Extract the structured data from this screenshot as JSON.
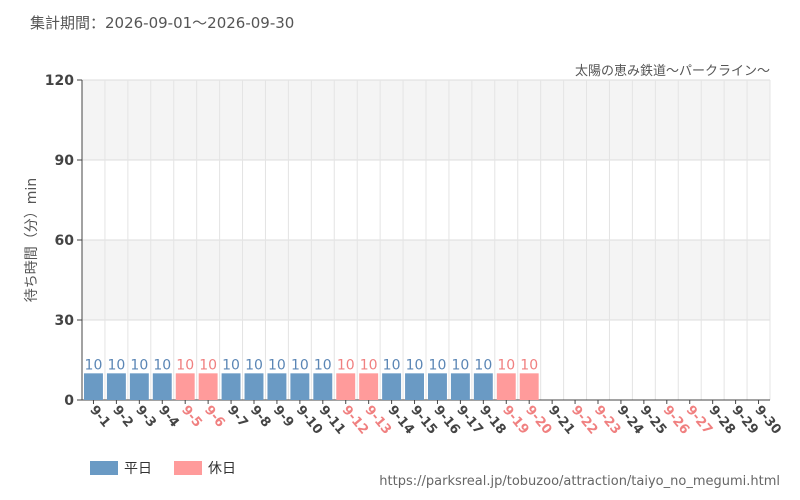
{
  "header": {
    "period_label": "集計期間：2026-09-01～2026-09-30",
    "attraction": "太陽の恵み鉄道～パークライン～"
  },
  "footer": {
    "url": "https://parksreal.jp/tobuzoo/attraction/taiyo_no_megumi.html"
  },
  "colors": {
    "weekday": "#6a9ac4",
    "holiday": "#ff9b9b",
    "weekday_text": "#5b86b5",
    "holiday_text": "#f08080"
  },
  "chart_data": {
    "type": "bar",
    "ylabel": "待ち時間（分）min",
    "ylim": [
      0,
      120
    ],
    "yticks": [
      0,
      30,
      60,
      90,
      120
    ],
    "grid": true,
    "legend_placement": "bottom-left",
    "categories": [
      "9-1",
      "9-2",
      "9-3",
      "9-4",
      "9-5",
      "9-6",
      "9-7",
      "9-8",
      "9-9",
      "9-10",
      "9-11",
      "9-12",
      "9-13",
      "9-14",
      "9-15",
      "9-16",
      "9-17",
      "9-18",
      "9-19",
      "9-20",
      "9-21",
      "9-22",
      "9-23",
      "9-24",
      "9-25",
      "9-26",
      "9-27",
      "9-28",
      "9-29",
      "9-30"
    ],
    "values": [
      10,
      10,
      10,
      10,
      10,
      10,
      10,
      10,
      10,
      10,
      10,
      10,
      10,
      10,
      10,
      10,
      10,
      10,
      10,
      10,
      null,
      null,
      null,
      null,
      null,
      null,
      null,
      null,
      null,
      null
    ],
    "day_types": [
      "weekday",
      "weekday",
      "weekday",
      "weekday",
      "holiday",
      "holiday",
      "weekday",
      "weekday",
      "weekday",
      "weekday",
      "weekday",
      "holiday",
      "holiday",
      "weekday",
      "weekday",
      "weekday",
      "weekday",
      "weekday",
      "holiday",
      "holiday",
      "weekday",
      "holiday",
      "holiday",
      "weekday",
      "weekday",
      "holiday",
      "holiday",
      "weekday",
      "weekday",
      "weekday"
    ],
    "legend": [
      {
        "key": "weekday",
        "label": "平日"
      },
      {
        "key": "holiday",
        "label": "休日"
      }
    ]
  }
}
